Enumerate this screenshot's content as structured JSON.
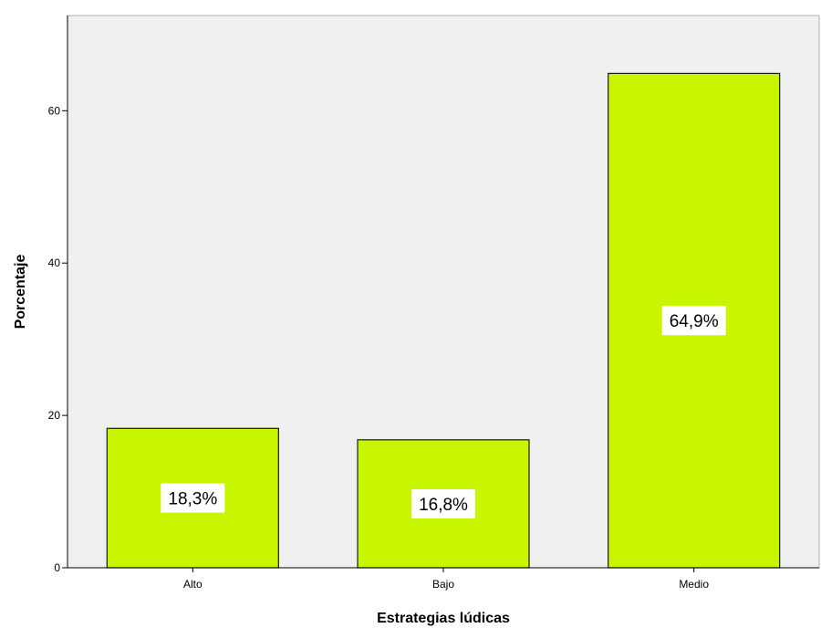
{
  "chart_data": {
    "type": "bar",
    "title": "",
    "xlabel": "Estrategias lúdicas",
    "ylabel": "Porcentaje",
    "categories": [
      "Alto",
      "Bajo",
      "Medio"
    ],
    "values": [
      18.3,
      16.8,
      64.9
    ],
    "data_labels": [
      "18,3%",
      "16,8%",
      "64,9%"
    ],
    "ylim": [
      0,
      72.5
    ],
    "yticks": [
      0,
      20,
      40,
      60
    ],
    "grid": false,
    "legend": "none",
    "colors": {
      "bar_fill": "#c8f500",
      "bar_stroke": "#1a1a1a",
      "plot_background": "#f0f0f0",
      "axis": "#000000",
      "label_box": "#ffffff"
    }
  }
}
